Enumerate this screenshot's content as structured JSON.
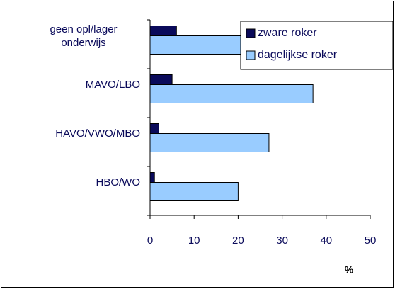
{
  "chart_data": {
    "type": "barh",
    "categories": [
      "HBO/WO",
      "HAVO/VWO/MBO",
      "MAVO/LBO",
      "geen opl/lager onderwijs"
    ],
    "series": [
      {
        "name": "zware roker",
        "color": "#0a0a5a",
        "values": [
          1,
          2,
          5,
          6
        ]
      },
      {
        "name": "dagelijkse roker",
        "color": "#99ccff",
        "values": [
          20,
          27,
          37,
          40
        ]
      }
    ],
    "x_label": "%",
    "xlim": [
      0,
      50
    ],
    "xticks": [
      0,
      10,
      20,
      30,
      40,
      50
    ],
    "legend": "top-right"
  }
}
